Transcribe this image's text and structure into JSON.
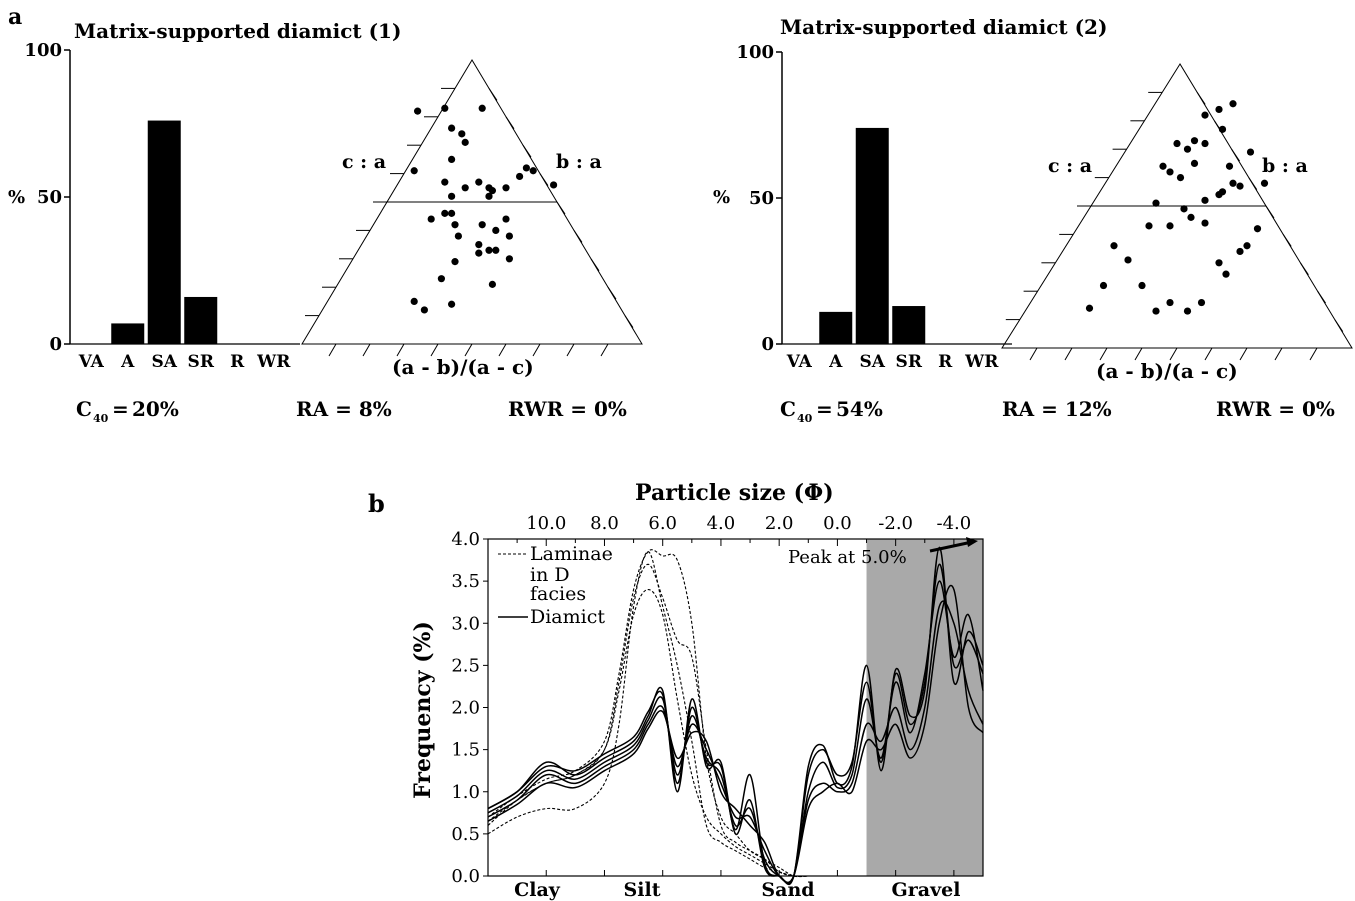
{
  "panel_a_label": "a",
  "panel_b_label": "b",
  "chart_data": [
    {
      "type": "bar",
      "title": "Matrix-supported diamict (1)",
      "ylabel": "%",
      "ylim": [
        0,
        100
      ],
      "yticks": [
        "0",
        "50",
        "100"
      ],
      "categories": [
        "VA",
        "A",
        "SA",
        "SR",
        "R",
        "WR"
      ],
      "values": [
        0,
        7,
        76,
        16,
        0,
        0
      ],
      "stats": {
        "c40": "20%",
        "ra": "RA = 8%",
        "rwr": "RWR = 0%"
      },
      "ternary": {
        "left_label": "c : a",
        "right_label": "b : a",
        "bottom_label": "(a - b)/(a - c)",
        "center_line_fraction": 0.5,
        "points": [
          [
            0.34,
            0.82
          ],
          [
            0.42,
            0.83
          ],
          [
            0.53,
            0.83
          ],
          [
            0.33,
            0.61
          ],
          [
            0.48,
            0.71
          ],
          [
            0.44,
            0.76
          ],
          [
            0.47,
            0.74
          ],
          [
            0.44,
            0.65
          ],
          [
            0.42,
            0.57
          ],
          [
            0.44,
            0.52
          ],
          [
            0.48,
            0.55
          ],
          [
            0.52,
            0.57
          ],
          [
            0.55,
            0.55
          ],
          [
            0.56,
            0.54
          ],
          [
            0.55,
            0.52
          ],
          [
            0.6,
            0.55
          ],
          [
            0.64,
            0.59
          ],
          [
            0.66,
            0.62
          ],
          [
            0.68,
            0.61
          ],
          [
            0.74,
            0.56
          ],
          [
            0.42,
            0.46
          ],
          [
            0.44,
            0.46
          ],
          [
            0.38,
            0.44
          ],
          [
            0.45,
            0.42
          ],
          [
            0.53,
            0.42
          ],
          [
            0.57,
            0.4
          ],
          [
            0.6,
            0.44
          ],
          [
            0.46,
            0.38
          ],
          [
            0.52,
            0.35
          ],
          [
            0.52,
            0.32
          ],
          [
            0.55,
            0.33
          ],
          [
            0.61,
            0.38
          ],
          [
            0.45,
            0.29
          ],
          [
            0.57,
            0.33
          ],
          [
            0.61,
            0.3
          ],
          [
            0.41,
            0.23
          ],
          [
            0.33,
            0.15
          ],
          [
            0.36,
            0.12
          ],
          [
            0.44,
            0.14
          ],
          [
            0.56,
            0.21
          ]
        ]
      }
    },
    {
      "type": "bar",
      "title": "Matrix-supported diamict (2)",
      "ylabel": "%",
      "ylim": [
        0,
        100
      ],
      "yticks": [
        "0",
        "50",
        "100"
      ],
      "categories": [
        "VA",
        "A",
        "SA",
        "SR",
        "R",
        "WR"
      ],
      "values": [
        0,
        11,
        74,
        13,
        0,
        0
      ],
      "stats": {
        "c40": "54%",
        "ra": "RA = 12%",
        "rwr": "RWR = 0%"
      },
      "ternary": {
        "left_label": "c : a",
        "right_label": "b : a",
        "bottom_label": "(a - b)/(a - c)",
        "center_line_fraction": 0.5,
        "points": [
          [
            0.25,
            0.14
          ],
          [
            0.29,
            0.22
          ],
          [
            0.32,
            0.36
          ],
          [
            0.4,
            0.22
          ],
          [
            0.44,
            0.13
          ],
          [
            0.48,
            0.16
          ],
          [
            0.53,
            0.13
          ],
          [
            0.57,
            0.16
          ],
          [
            0.36,
            0.31
          ],
          [
            0.42,
            0.43
          ],
          [
            0.44,
            0.51
          ],
          [
            0.48,
            0.43
          ],
          [
            0.52,
            0.49
          ],
          [
            0.54,
            0.46
          ],
          [
            0.58,
            0.44
          ],
          [
            0.62,
            0.3
          ],
          [
            0.64,
            0.26
          ],
          [
            0.68,
            0.34
          ],
          [
            0.7,
            0.36
          ],
          [
            0.73,
            0.42
          ],
          [
            0.58,
            0.52
          ],
          [
            0.62,
            0.54
          ],
          [
            0.63,
            0.55
          ],
          [
            0.65,
            0.64
          ],
          [
            0.66,
            0.58
          ],
          [
            0.68,
            0.57
          ],
          [
            0.71,
            0.69
          ],
          [
            0.75,
            0.58
          ],
          [
            0.46,
            0.64
          ],
          [
            0.48,
            0.62
          ],
          [
            0.51,
            0.6
          ],
          [
            0.53,
            0.7
          ],
          [
            0.55,
            0.73
          ],
          [
            0.5,
            0.72
          ],
          [
            0.58,
            0.82
          ],
          [
            0.62,
            0.84
          ],
          [
            0.66,
            0.86
          ],
          [
            0.63,
            0.77
          ],
          [
            0.58,
            0.72
          ],
          [
            0.55,
            0.65
          ]
        ]
      }
    },
    {
      "type": "line",
      "title": "Particle size (Φ)",
      "xlabel": "Particle size (Φ)",
      "ylabel": "Frequency (%)",
      "xlim": [
        12.0,
        -5.0
      ],
      "ylim": [
        0.0,
        4.0
      ],
      "xticks": [
        "10.0",
        "8.0",
        "6.0",
        "4.0",
        "2.0",
        "0.0",
        "-2.0",
        "-4.0"
      ],
      "yticks": [
        "0.0",
        "0.5",
        "1.0",
        "1.5",
        "2.0",
        "2.5",
        "3.0",
        "3.5",
        "4.0"
      ],
      "gravel_shading_from": -1.0,
      "annotation": "Peak at 5.0%",
      "legend": [
        {
          "label": "Laminae",
          "style": "dashed"
        },
        {
          "label": "in D",
          "style": ""
        },
        {
          "label": "facies",
          "style": ""
        },
        {
          "label": "Diamict",
          "style": "solid"
        }
      ],
      "class_labels": [
        "Clay",
        "Silt",
        "Sand",
        "Gravel"
      ],
      "series": [
        {
          "style": "dashed",
          "x": [
            12,
            11,
            10,
            9,
            8,
            7.5,
            7,
            6.5,
            6,
            5.5,
            5,
            4.5,
            4,
            3.5,
            3,
            2.5,
            2,
            1.5,
            1,
            0.5
          ],
          "y": [
            0.5,
            0.7,
            0.8,
            0.8,
            1.1,
            1.8,
            3.2,
            3.85,
            3.2,
            2.5,
            1.6,
            0.6,
            0.4,
            0.3,
            0.2,
            0.1,
            0.05,
            0,
            0,
            0
          ]
        },
        {
          "style": "dashed",
          "x": [
            12,
            11,
            10,
            9,
            8,
            7.5,
            7,
            6.5,
            6,
            5.5,
            5,
            4.5,
            4,
            3.5,
            3,
            2.5,
            2,
            1.5,
            1,
            0.5
          ],
          "y": [
            0.6,
            0.9,
            1.1,
            1.2,
            1.5,
            2.2,
            3.1,
            3.4,
            3.1,
            2.1,
            1.2,
            0.7,
            0.5,
            0.35,
            0.25,
            0.15,
            0.05,
            0,
            0,
            0
          ]
        },
        {
          "style": "dashed",
          "x": [
            12,
            11,
            10,
            9,
            8,
            7.5,
            7,
            6.5,
            6,
            5.5,
            5,
            4.5,
            4,
            3.5,
            3,
            2.5,
            2,
            1.5,
            1,
            0.5
          ],
          "y": [
            0.7,
            0.95,
            1.15,
            1.25,
            1.6,
            2.4,
            3.4,
            3.85,
            3.8,
            3.75,
            3.0,
            1.4,
            0.7,
            0.5,
            0.3,
            0.2,
            0.1,
            0,
            0,
            0
          ]
        },
        {
          "style": "dashed",
          "x": [
            12,
            11,
            10,
            9,
            8,
            7.5,
            7,
            6.5,
            6,
            5.5,
            5,
            4.5,
            4,
            3.5,
            3,
            2.5,
            2,
            1.5,
            1,
            0.5
          ],
          "y": [
            0.65,
            0.9,
            1.1,
            1.2,
            1.5,
            2.3,
            3.3,
            3.7,
            3.3,
            2.8,
            2.6,
            1.5,
            0.6,
            0.4,
            0.3,
            0.2,
            0.05,
            0,
            0,
            0
          ]
        },
        {
          "style": "solid",
          "x": [
            12,
            11,
            10,
            9,
            8,
            7,
            6.5,
            6,
            5.5,
            5,
            4.5,
            4,
            3.5,
            3,
            2.5,
            2,
            1.5,
            1,
            0.5,
            0,
            -0.5,
            -1,
            -1.5,
            -2,
            -2.5,
            -3,
            -3.5,
            -4,
            -4.5,
            -5
          ],
          "y": [
            0.8,
            1.0,
            1.35,
            1.2,
            1.4,
            1.6,
            1.9,
            2.2,
            1.0,
            2.1,
            1.3,
            1.35,
            0.5,
            0.9,
            0.1,
            0,
            0,
            1.3,
            1.55,
            1.1,
            1.3,
            2.5,
            1.25,
            2.45,
            1.9,
            2.2,
            3.9,
            2.3,
            2.9,
            2.5
          ]
        },
        {
          "style": "solid",
          "x": [
            12,
            11,
            10,
            9,
            8,
            7,
            6.5,
            6,
            5.5,
            5,
            4.5,
            4,
            3.5,
            3,
            2.5,
            2,
            1.5,
            1,
            0.5,
            0,
            -0.5,
            -1,
            -1.5,
            -2,
            -2.5,
            -3,
            -3.5,
            -4,
            -4.5,
            -5
          ],
          "y": [
            0.75,
            0.95,
            1.25,
            1.15,
            1.35,
            1.55,
            1.85,
            2.1,
            1.2,
            1.9,
            1.4,
            1.2,
            0.6,
            0.8,
            0.2,
            0,
            0,
            1.0,
            1.35,
            1.05,
            1.2,
            2.1,
            1.4,
            2.3,
            1.7,
            2.4,
            3.5,
            2.6,
            3.1,
            2.2
          ]
        },
        {
          "style": "solid",
          "x": [
            12,
            11,
            10,
            9,
            8,
            7,
            6.5,
            6,
            5.5,
            5,
            4.5,
            4,
            3.5,
            3,
            2.5,
            2,
            1.5,
            1,
            0.5,
            0,
            -0.5,
            -1,
            -1.5,
            -2,
            -2.5,
            -3,
            -3.5,
            -4,
            -4.5,
            -5
          ],
          "y": [
            0.7,
            0.9,
            1.2,
            1.1,
            1.3,
            1.5,
            1.8,
            2.0,
            1.3,
            1.8,
            1.5,
            1.1,
            0.7,
            0.7,
            0.3,
            0,
            0,
            0.9,
            1.1,
            1.0,
            1.1,
            1.8,
            1.6,
            2.0,
            1.5,
            2.0,
            3.2,
            3.0,
            2.2,
            1.8
          ]
        },
        {
          "style": "solid",
          "x": [
            12,
            11,
            10,
            9,
            8,
            7,
            6.5,
            6,
            5.5,
            5,
            4.5,
            4,
            3.5,
            3,
            2.5,
            2,
            1.5,
            1,
            0.5,
            0,
            -0.5,
            -1,
            -1.5,
            -2,
            -2.5,
            -3,
            -3.5,
            -4,
            -4.5,
            -5
          ],
          "y": [
            0.65,
            0.85,
            1.1,
            1.05,
            1.25,
            1.45,
            1.75,
            1.95,
            1.4,
            1.7,
            1.6,
            1.0,
            0.8,
            0.6,
            0.4,
            0,
            0,
            0.8,
            1.0,
            1.1,
            1.0,
            1.6,
            1.5,
            1.8,
            1.4,
            1.8,
            3.0,
            3.4,
            2.0,
            1.7
          ]
        },
        {
          "style": "solid",
          "x": [
            12,
            11,
            10,
            9,
            8,
            7,
            6.5,
            6,
            5.5,
            5,
            4.5,
            4,
            3.5,
            3,
            2.5,
            2,
            1.5,
            1,
            0.5,
            0,
            -0.5,
            -1,
            -1.5,
            -2,
            -2.5,
            -3,
            -3.5,
            -4,
            -4.5,
            -5
          ],
          "y": [
            0.8,
            1.0,
            1.3,
            1.25,
            1.45,
            1.65,
            1.95,
            2.15,
            1.1,
            2.0,
            1.35,
            1.3,
            0.55,
            1.2,
            0.15,
            0,
            0,
            1.2,
            1.5,
            1.2,
            1.35,
            2.3,
            1.35,
            2.4,
            1.8,
            2.3,
            3.7,
            2.5,
            2.8,
            2.4
          ]
        }
      ]
    }
  ]
}
